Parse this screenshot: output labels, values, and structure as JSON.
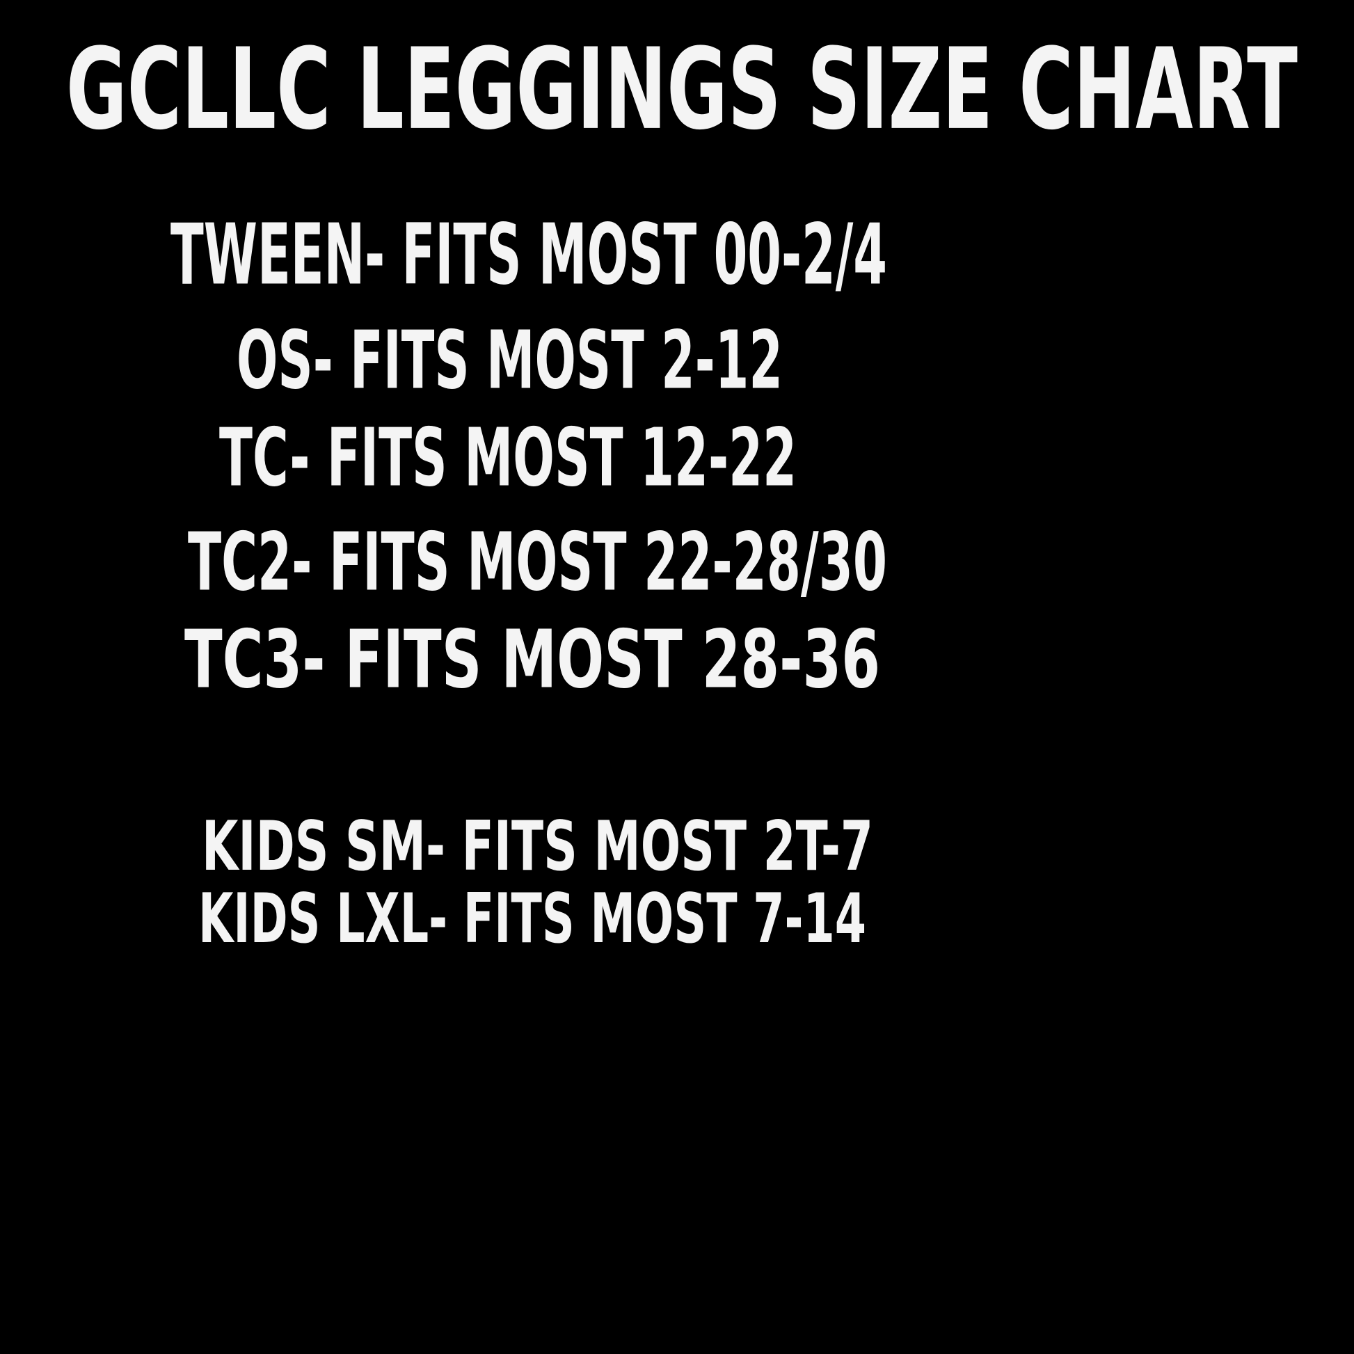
{
  "title": "GCLLC LEGGINGS SIZE CHART",
  "colors": {
    "background": "#000000",
    "text": "#f4f4f4"
  },
  "sizes": [
    "TWEEN- FITS MOST 00-2/4",
    "OS- FITS MOST 2-12",
    "TC- FITS MOST 12-22",
    "TC2- FITS MOST 22-28/30",
    "TC3- FITS MOST 28-36"
  ],
  "kids_sizes": [
    "KIDS SM- FITS MOST 2T-7",
    "KIDS LXL- FITS MOST 7-14"
  ]
}
